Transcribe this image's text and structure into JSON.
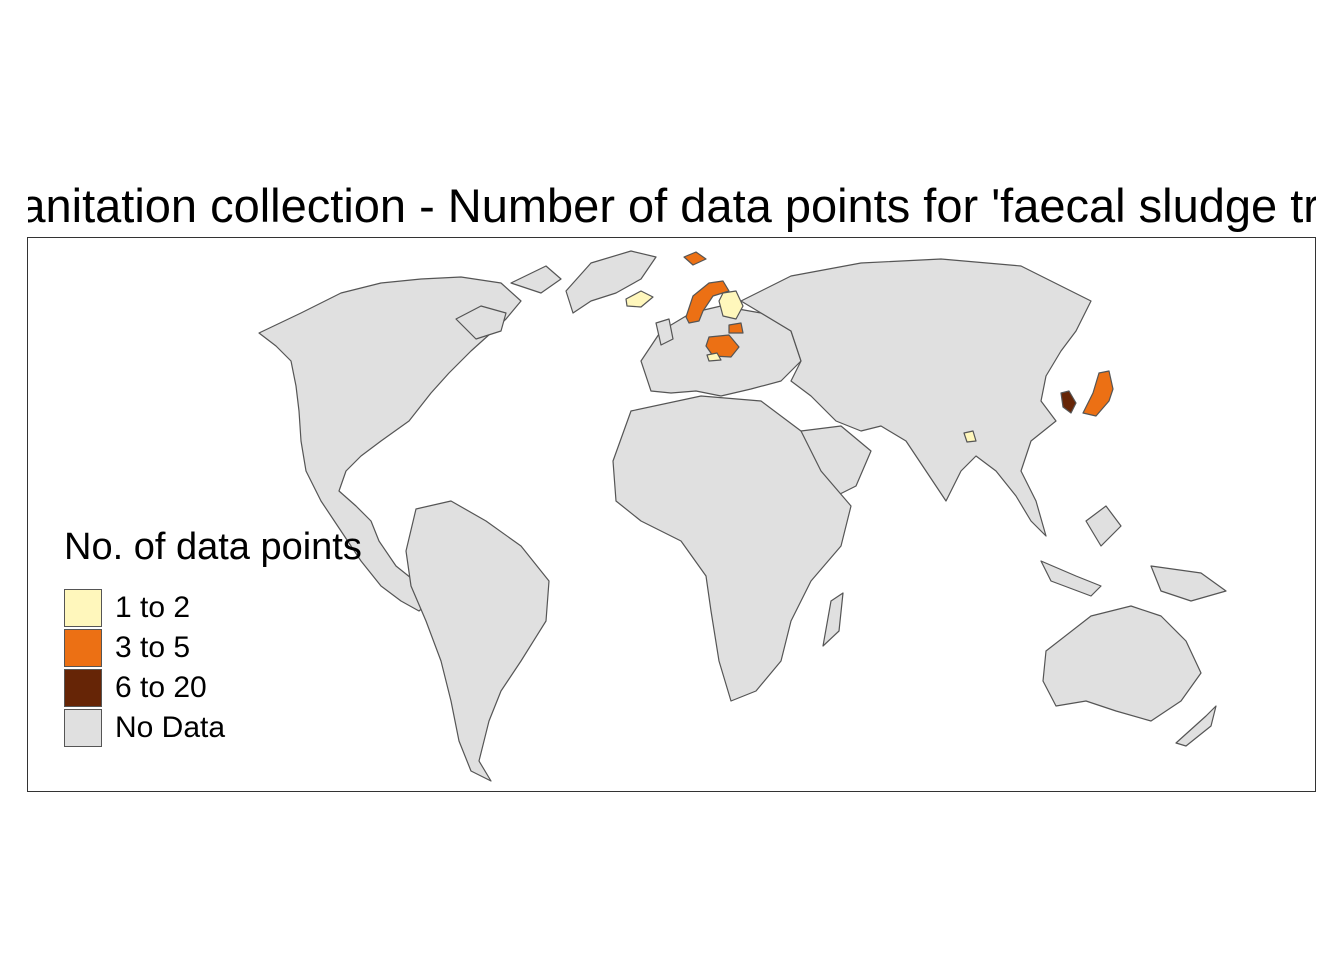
{
  "title": "Sanitation collection - Number of data points for 'faecal sludge treatment'",
  "legend": {
    "title": "No. of data points",
    "items": [
      {
        "label": "1 to 2",
        "color": "#FFF7BC"
      },
      {
        "label": "3 to 5",
        "color": "#EC7014"
      },
      {
        "label": "6 to 20",
        "color": "#662506"
      },
      {
        "label": "No Data",
        "color": "#E0E0E0"
      }
    ]
  },
  "colors": {
    "no_data": "#E0E0E0",
    "border": "#555555",
    "background": "#FFFFFF"
  },
  "highlighted_countries": [
    {
      "name": "Norway",
      "class": "3 to 5"
    },
    {
      "name": "Finland",
      "class": "1 to 2"
    },
    {
      "name": "Iceland",
      "class": "1 to 2"
    },
    {
      "name": "Svalbard",
      "class": "3 to 5"
    },
    {
      "name": "Poland",
      "class": "3 to 5"
    },
    {
      "name": "Lithuania",
      "class": "3 to 5"
    },
    {
      "name": "Austria",
      "class": "1 to 2"
    },
    {
      "name": "Japan",
      "class": "3 to 5"
    },
    {
      "name": "South Korea",
      "class": "6 to 20"
    },
    {
      "name": "Bangladesh",
      "class": "1 to 2"
    }
  ]
}
